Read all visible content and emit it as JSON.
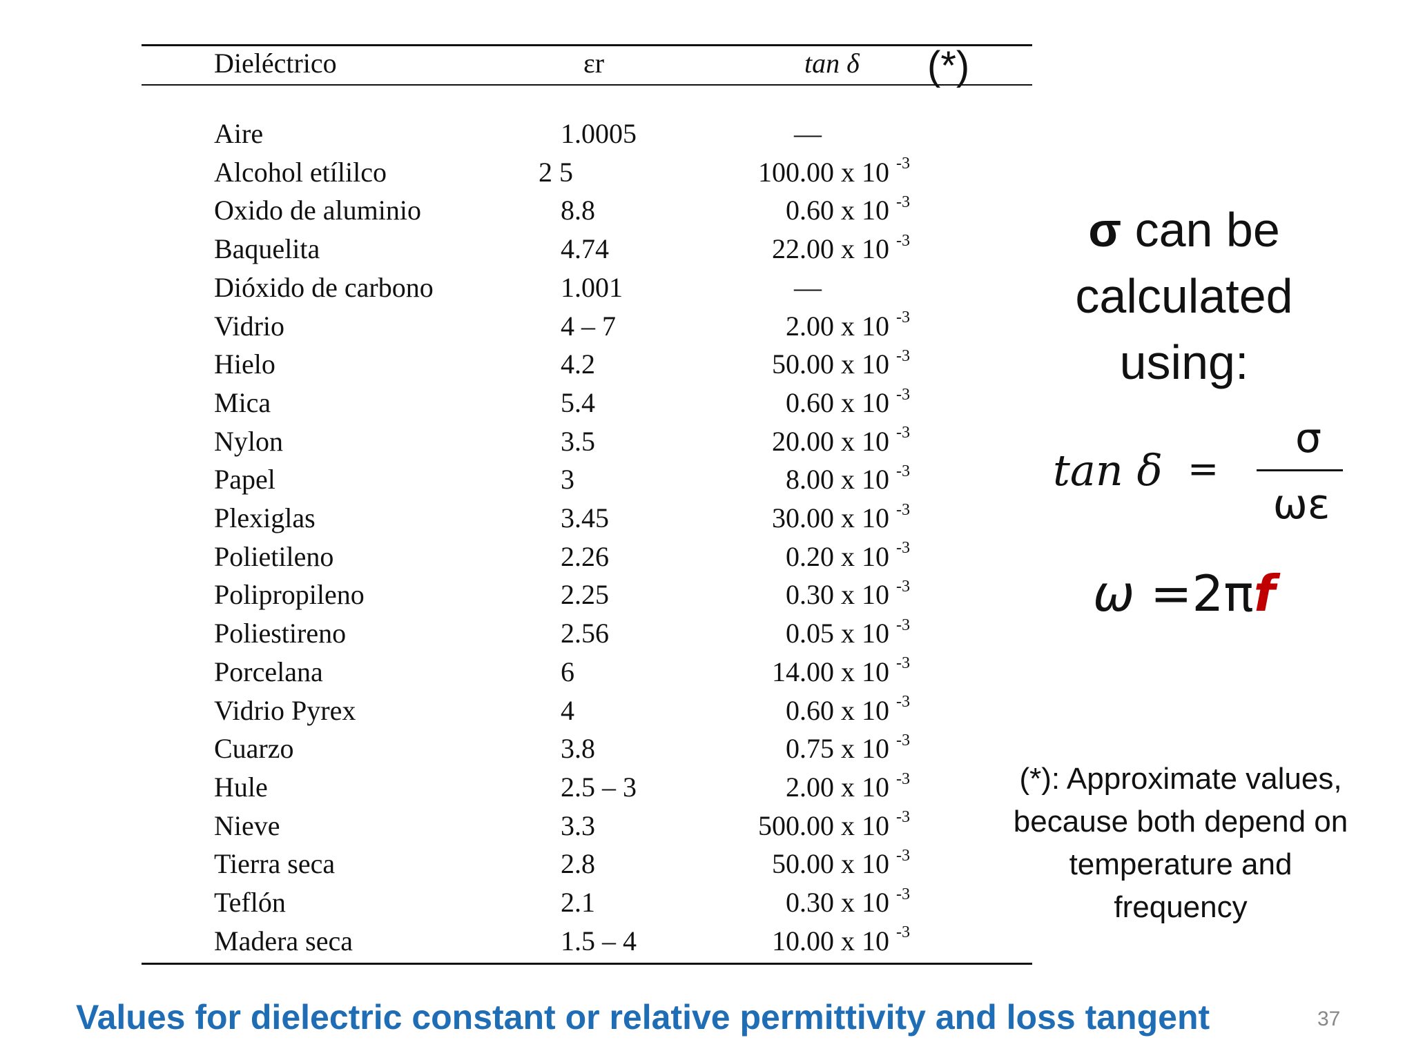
{
  "table": {
    "headers": {
      "name": "Dieléctrico",
      "epsilon": "εr",
      "tan_delta": "tan δ",
      "footnote_mark": "(*)"
    },
    "rows": [
      {
        "name": "Aire",
        "epsilon": "1.0005",
        "tan_mant": "—",
        "tan_exp": ""
      },
      {
        "name": "Alcohol etílilco",
        "epsilon": "2 5",
        "tan_mant": "100.00 x 10",
        "tan_exp": "-3"
      },
      {
        "name": "Oxido de aluminio",
        "epsilon": "8.8",
        "tan_mant": "0.60 x 10",
        "tan_exp": "-3"
      },
      {
        "name": "Baquelita",
        "epsilon": "4.74",
        "tan_mant": "22.00 x 10",
        "tan_exp": "-3"
      },
      {
        "name": "Dióxido de carbono",
        "epsilon": "1.001",
        "tan_mant": "—",
        "tan_exp": ""
      },
      {
        "name": "Vidrio",
        "epsilon": "4 – 7",
        "tan_mant": "2.00 x 10",
        "tan_exp": "-3"
      },
      {
        "name": "Hielo",
        "epsilon": "4.2",
        "tan_mant": "50.00 x 10",
        "tan_exp": "-3"
      },
      {
        "name": "Mica",
        "epsilon": "5.4",
        "tan_mant": "0.60 x 10",
        "tan_exp": "-3"
      },
      {
        "name": "Nylon",
        "epsilon": "3.5",
        "tan_mant": "20.00 x 10",
        "tan_exp": "-3"
      },
      {
        "name": "Papel",
        "epsilon": "3",
        "tan_mant": "8.00 x 10",
        "tan_exp": "-3"
      },
      {
        "name": "Plexiglas",
        "epsilon": "3.45",
        "tan_mant": "30.00 x 10",
        "tan_exp": "-3"
      },
      {
        "name": "Polietileno",
        "epsilon": "2.26",
        "tan_mant": "0.20 x 10",
        "tan_exp": "-3"
      },
      {
        "name": "Polipropileno",
        "epsilon": "2.25",
        "tan_mant": "0.30 x 10",
        "tan_exp": "-3"
      },
      {
        "name": "Poliestireno",
        "epsilon": "2.56",
        "tan_mant": "0.05 x 10",
        "tan_exp": "-3"
      },
      {
        "name": "Porcelana",
        "epsilon": "6",
        "tan_mant": "14.00 x 10",
        "tan_exp": "-3"
      },
      {
        "name": "Vidrio Pyrex",
        "epsilon": "4",
        "tan_mant": "0.60 x 10",
        "tan_exp": "-3"
      },
      {
        "name": "Cuarzo",
        "epsilon": "3.8",
        "tan_mant": "0.75 x 10",
        "tan_exp": "-3"
      },
      {
        "name": "Hule",
        "epsilon": "2.5 – 3",
        "tan_mant": "2.00 x 10",
        "tan_exp": "-3"
      },
      {
        "name": "Nieve",
        "epsilon": "3.3",
        "tan_mant": "500.00 x 10",
        "tan_exp": "-3"
      },
      {
        "name": "Tierra seca",
        "epsilon": "2.8",
        "tan_mant": "50.00 x 10",
        "tan_exp": "-3"
      },
      {
        "name": "Teflón",
        "epsilon": "2.1",
        "tan_mant": "0.30 x 10",
        "tan_exp": "-3"
      },
      {
        "name": "Madera seca",
        "epsilon": "1.5 – 4",
        "tan_mant": "10.00 x 10",
        "tan_exp": "-3"
      }
    ]
  },
  "side": {
    "sigma_symbol": "σ",
    "sigma_text_1": " can be",
    "sigma_text_2": "calculated",
    "sigma_text_3": "using:",
    "formula": {
      "lhs": "tan δ",
      "eq": "=",
      "numerator": "σ",
      "denominator": "ωε"
    },
    "omega": {
      "w": "ω",
      "rest": " =2π",
      "f": "f"
    },
    "note_lines": [
      "(*): Approximate values,",
      "because both depend on",
      "temperature and",
      "frequency"
    ]
  },
  "caption": "Values for dielectric constant or relative permittivity and loss tangent",
  "page_number": "37",
  "colors": {
    "caption": "#1f6eb5",
    "f_highlight": "#c00000"
  }
}
